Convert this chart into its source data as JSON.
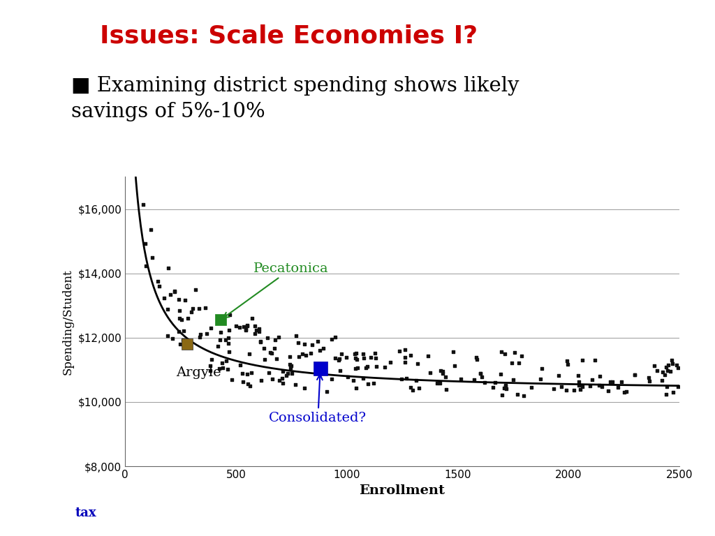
{
  "title": "Issues: Scale Economies I?",
  "title_color": "#cc0000",
  "bar_color": "#000080",
  "bullet_line1": "■ Examining district spending shows likely",
  "bullet_line2": "savings of 5%-10%",
  "xlabel": "Enrollment",
  "ylabel": "Spending/Student",
  "xlim": [
    0,
    2500
  ],
  "ylim": [
    8000,
    17000
  ],
  "xticks": [
    0,
    500,
    1000,
    1500,
    2000,
    2500
  ],
  "yticks": [
    8000,
    10000,
    12000,
    14000,
    16000
  ],
  "ytick_labels": [
    "$8,000",
    "$10,000",
    "$12,000",
    "$14,000",
    "$16,000"
  ],
  "curve_color": "#000000",
  "scatter_color": "#111111",
  "argyle_x": 280,
  "argyle_y": 11800,
  "argyle_color": "#8B6914",
  "pecatonica_x": 430,
  "pecatonica_y": 12550,
  "pecatonica_color": "#228B22",
  "consolidated_x": 880,
  "consolidated_y": 11050,
  "consolidated_color": "#0000cc",
  "annotation_pecatonica_color": "#228B22",
  "annotation_consolidated_color": "#0000cc",
  "background_color": "#ffffff",
  "curve_A": 520000,
  "curve_B": 30,
  "curve_C": 10300
}
